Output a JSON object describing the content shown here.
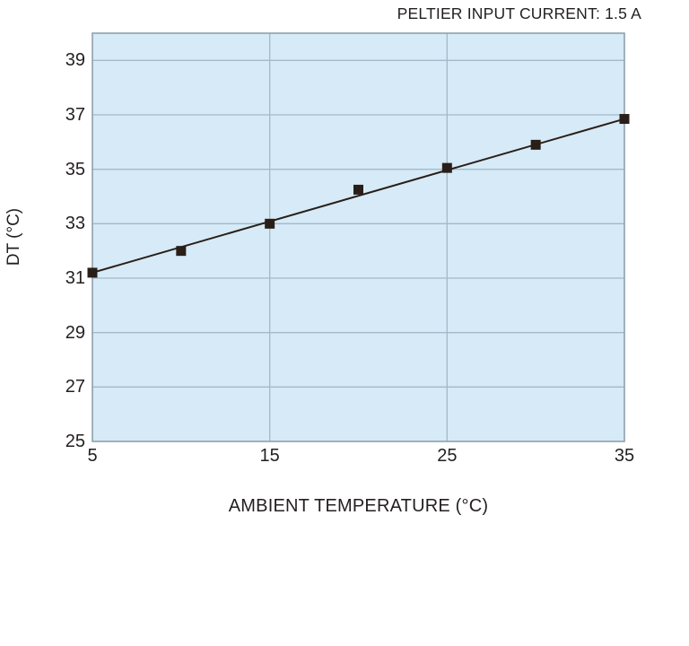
{
  "page": {
    "background": "#ffffff"
  },
  "chart_data": {
    "type": "line",
    "title": "PELTIER INPUT CURRENT: 1.5 A",
    "xlabel": "AMBIENT TEMPERATURE (°C)",
    "ylabel": "DT (°C)",
    "x": [
      5,
      10,
      15,
      20,
      25,
      30,
      35
    ],
    "y": [
      31.2,
      32.0,
      33.0,
      34.25,
      35.05,
      35.9,
      36.85
    ],
    "trendline": {
      "x": [
        5,
        35
      ],
      "y": [
        31.2,
        36.85
      ]
    },
    "xlim": [
      5,
      35
    ],
    "ylim": [
      25,
      40
    ],
    "x_ticks": [
      5,
      15,
      25,
      35
    ],
    "y_ticks": [
      25,
      27,
      29,
      31,
      33,
      35,
      37,
      39
    ],
    "grid": true,
    "legend_position": "none",
    "marker": "square",
    "colors": {
      "plot_bg": "#d6eaf7",
      "grid": "#a2bac9",
      "border": "#8da0ab",
      "series": "#2a1e18",
      "text": "#231f1f"
    }
  }
}
